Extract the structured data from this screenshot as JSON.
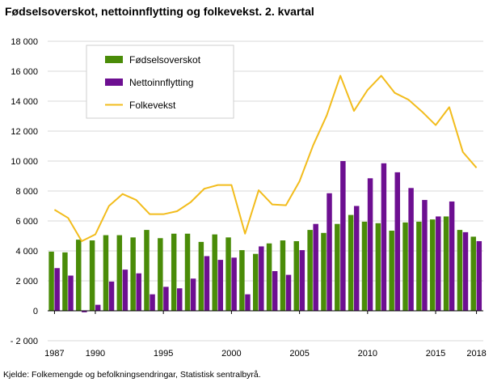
{
  "chart_data": {
    "type": "bar",
    "title": "Fødselsoverskot, nettoinnflytting og folkevekst.  2. kvartal",
    "source": "Kjelde: Folkemengde og befolkningsendringar, Statistisk sentralbyrå.",
    "xlabel": "",
    "ylabel": "",
    "x": [
      1987,
      1988,
      1989,
      1990,
      1991,
      1992,
      1993,
      1994,
      1995,
      1996,
      1997,
      1998,
      1999,
      2000,
      2001,
      2002,
      2003,
      2004,
      2005,
      2006,
      2007,
      2008,
      2009,
      2010,
      2011,
      2012,
      2013,
      2014,
      2015,
      2016,
      2017,
      2018
    ],
    "x_tick_labels": [
      "1987",
      "1990",
      "1995",
      "2000",
      "2005",
      "2010",
      "2015",
      "2018"
    ],
    "x_tick_values": [
      1987,
      1990,
      1995,
      2000,
      2005,
      2010,
      2015,
      2018
    ],
    "ylim": [
      -2000,
      18000
    ],
    "y_ticks": [
      -2000,
      0,
      2000,
      4000,
      6000,
      8000,
      10000,
      12000,
      14000,
      16000,
      18000
    ],
    "y_tick_labels": [
      "- 2 000",
      "0",
      "2 000",
      "4 000",
      "6 000",
      "8 000",
      "10 000",
      "12 000",
      "14 000",
      "16 000",
      "18 000"
    ],
    "grid": true,
    "legend_position": "top-left",
    "series": [
      {
        "name": "Fødselsoverskot",
        "kind": "bar",
        "color": "#4a8c08",
        "values": [
          3950,
          3900,
          4750,
          4700,
          5050,
          5050,
          4900,
          5400,
          4850,
          5150,
          5150,
          4600,
          5100,
          4900,
          4050,
          3800,
          4500,
          4700,
          4650,
          5400,
          5200,
          5800,
          6400,
          5950,
          5850,
          5350,
          5900,
          5950,
          6100,
          6300,
          5400,
          4950
        ]
      },
      {
        "name": "Nettoinnflytting",
        "kind": "bar",
        "color": "#6d0f91",
        "values": [
          2850,
          2350,
          -100,
          400,
          1950,
          2750,
          2500,
          1100,
          1600,
          1500,
          2150,
          3650,
          3400,
          3550,
          1100,
          4300,
          2650,
          2400,
          4050,
          5800,
          7850,
          10000,
          7000,
          8850,
          9850,
          9250,
          8200,
          7400,
          6300,
          7300,
          5250,
          4650
        ]
      },
      {
        "name": "Folkevekst",
        "kind": "line",
        "color": "#f2bc1c",
        "values": [
          6750,
          6200,
          4650,
          5100,
          7000,
          7800,
          7400,
          6450,
          6450,
          6650,
          7250,
          8150,
          8400,
          8400,
          5150,
          8050,
          7100,
          7050,
          8650,
          11050,
          13050,
          15700,
          13350,
          14750,
          15700,
          14550,
          14100,
          13300,
          12400,
          13600,
          10600,
          9550
        ]
      }
    ]
  }
}
